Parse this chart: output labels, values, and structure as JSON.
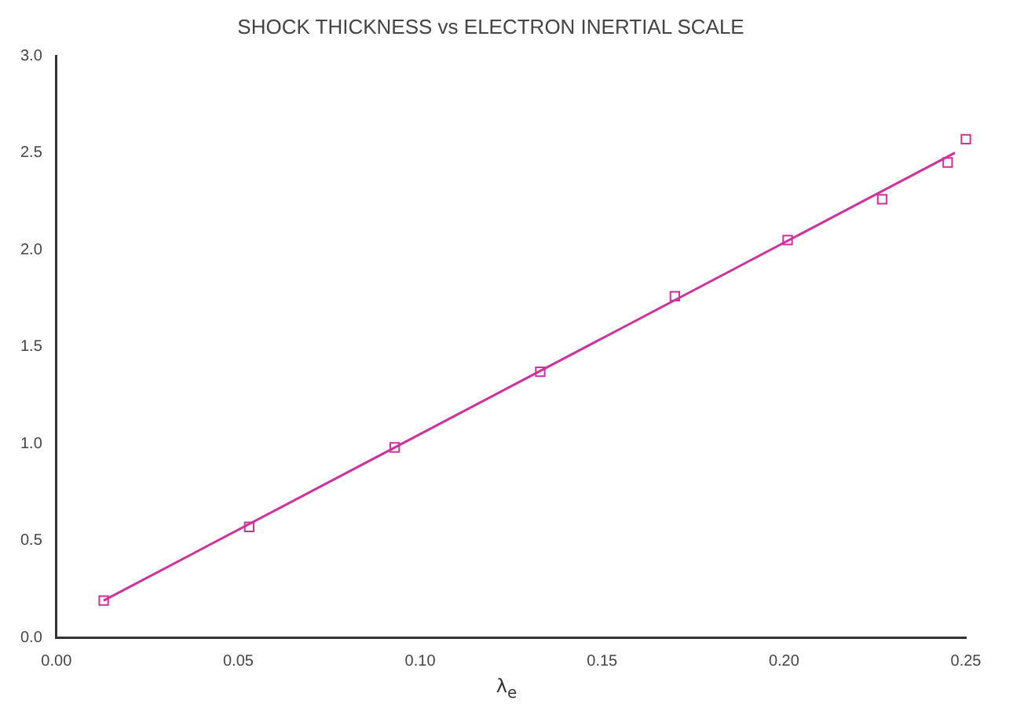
{
  "chart_data": {
    "type": "scatter",
    "title": "SHOCK THICKNESS vs ELECTRON INERTIAL SCALE",
    "xlabel": "λ$_{e}$",
    "xlim": [
      0,
      0.25
    ],
    "xticks": [
      {
        "value": 0,
        "label": "0.00"
      },
      {
        "value": 0.05,
        "label": "0.05"
      },
      {
        "value": 0.1,
        "label": "0.10"
      },
      {
        "value": 0.15,
        "label": "0.15"
      },
      {
        "value": 0.2,
        "label": "0.20"
      },
      {
        "value": 0.25,
        "label": "0.25"
      }
    ],
    "ylim": [
      0,
      3
    ],
    "yticks": [
      {
        "value": 0,
        "label": "0.0"
      },
      {
        "value": 0.5,
        "label": "0.5"
      },
      {
        "value": 1,
        "label": "1.0"
      },
      {
        "value": 1.5,
        "label": "1.5"
      },
      {
        "value": 2,
        "label": "2.0"
      },
      {
        "value": 2.5,
        "label": "2.5"
      },
      {
        "value": 3,
        "label": "3.0"
      }
    ],
    "grid": false,
    "legend": false,
    "series": [
      {
        "color": "#d0309a",
        "marker": "square",
        "x": [
          0.013,
          0.053,
          0.093,
          0.133,
          0.17,
          0.201,
          0.227,
          0.245,
          0.25
        ],
        "values": [
          0.19,
          0.57,
          0.98,
          1.37,
          1.76,
          2.05,
          2.26,
          2.45,
          2.57
        ]
      },
      {
        "type": "line",
        "marker": "none",
        "color": "#d0309a",
        "x": [
          0.013,
          0.247
        ],
        "values": [
          0.19,
          2.5
        ]
      }
    ]
  }
}
